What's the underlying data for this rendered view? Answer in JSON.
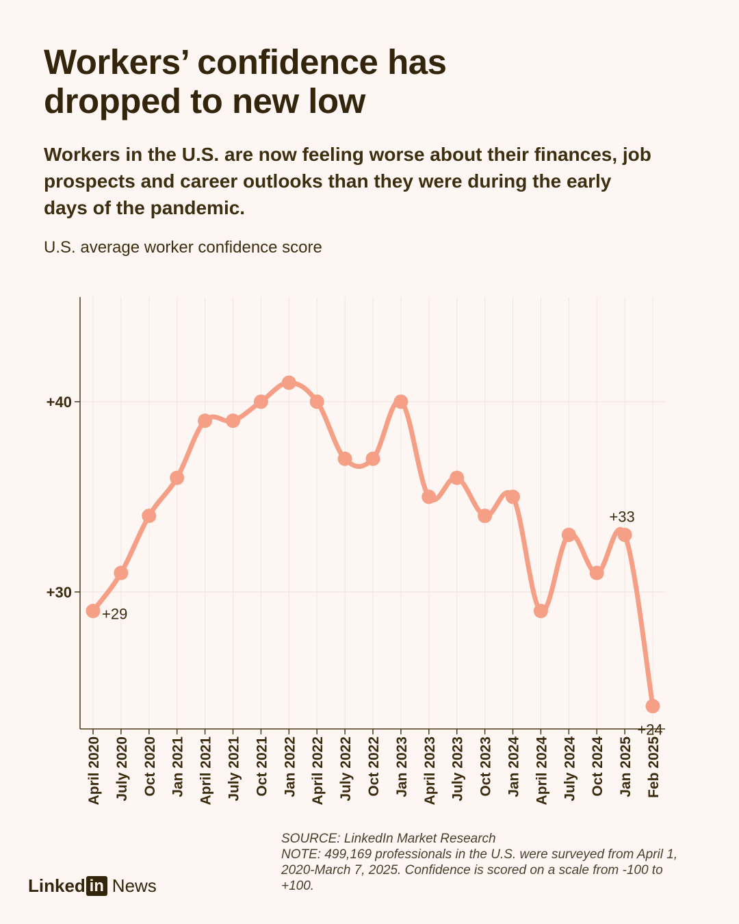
{
  "header": {
    "title_line1": "Workers’ confidence has",
    "title_line2": "dropped to new low",
    "subtitle": "Workers in the U.S. are now feeling worse about their finances, job prospects and career outlooks than they were during the early days of the pandemic.",
    "chart_label": "U.S. average worker confidence score"
  },
  "chart_data": {
    "type": "line",
    "title": "Workers’ confidence has dropped to new low",
    "ylabel": "U.S. average worker confidence score",
    "xlabel": "",
    "categories": [
      "April 2020",
      "July 2020",
      "Oct 2020",
      "Jan 2021",
      "April 2021",
      "July 2021",
      "Oct 2021",
      "Jan 2022",
      "April 2022",
      "July 2022",
      "Oct 2022",
      "Jan 2023",
      "April 2023",
      "July 2023",
      "Oct 2023",
      "Jan 2024",
      "April 2024",
      "July 2024",
      "Oct 2024",
      "Jan 2025",
      "Feb 2025"
    ],
    "series": [
      {
        "name": "Worker confidence score",
        "values": [
          29,
          31,
          34,
          36,
          39,
          39,
          40,
          41,
          40,
          37,
          37,
          40,
          35,
          36,
          34,
          35,
          29,
          33,
          31,
          33,
          24
        ]
      }
    ],
    "ylim": [
      22.8,
      45.5
    ],
    "yticks": [
      30,
      40
    ],
    "ytick_labels": [
      "+30",
      "+40"
    ],
    "annotations": [
      {
        "index": 0,
        "text": "+29"
      },
      {
        "index": 19,
        "text": "+33"
      },
      {
        "index": 20,
        "text": "+24"
      }
    ],
    "line_color": "#f49f86",
    "axis_color": "#4a3a1a",
    "grid": true
  },
  "footer": {
    "source": "SOURCE: LinkedIn Market Research",
    "note": "NOTE: 499,169 professionals in the U.S. were surveyed from April 1, 2020-March 7, 2025. Confidence is scored on a scale from -100 to +100."
  },
  "brand": {
    "name_left": "Linked",
    "name_box": "in",
    "name_right": "News"
  }
}
